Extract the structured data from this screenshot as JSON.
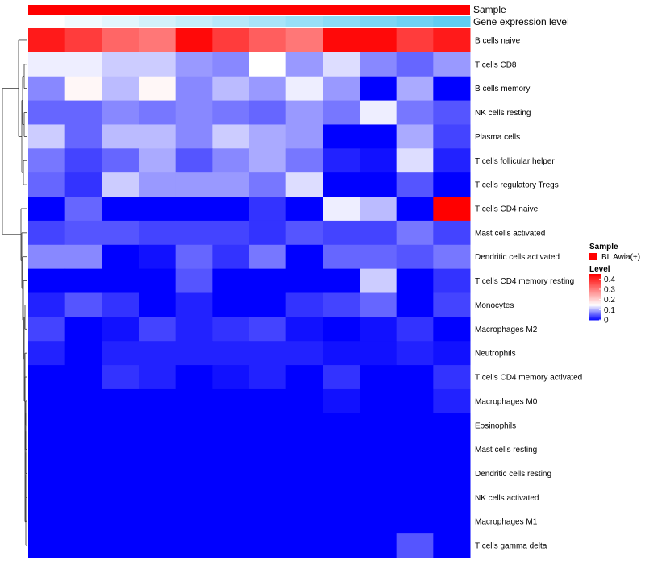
{
  "chart_data": {
    "type": "heatmap",
    "annotation_tracks": [
      {
        "name": "Sample",
        "color": "#ff0000"
      },
      {
        "name": "Gene expression level",
        "gradient": [
          "#ffffff",
          "#5fcdf2"
        ]
      }
    ],
    "rows": [
      "B cells naive",
      "T cells CD8",
      "B cells memory",
      "NK cells resting",
      "Plasma cells",
      "T cells follicular helper",
      "T cells regulatory  Tregs",
      "T cells CD4 naive",
      "Mast cells activated",
      "Dendritic cells activated",
      "T cells CD4 memory resting",
      "Monocytes",
      "Macrophages M2",
      "Neutrophils",
      "T cells CD4 memory activated",
      "Macrophages M0",
      "Eosinophils",
      "Mast cells resting",
      "Dendritic cells resting",
      "NK cells activated",
      "Macrophages M1",
      "T cells gamma delta"
    ],
    "n_columns": 12,
    "values": [
      [
        0.42,
        0.38,
        0.33,
        0.31,
        0.44,
        0.38,
        0.34,
        0.31,
        0.44,
        0.44,
        0.38,
        0.42
      ],
      [
        0.14,
        0.14,
        0.12,
        0.12,
        0.09,
        0.08,
        0.15,
        0.09,
        0.13,
        0.08,
        0.06,
        0.09
      ],
      [
        0.08,
        0.16,
        0.11,
        0.16,
        0.08,
        0.11,
        0.09,
        0.14,
        0.09,
        0.0,
        0.1,
        0.0
      ],
      [
        0.06,
        0.06,
        0.08,
        0.07,
        0.08,
        0.07,
        0.06,
        0.09,
        0.07,
        0.14,
        0.07,
        0.05
      ],
      [
        0.12,
        0.06,
        0.11,
        0.11,
        0.08,
        0.12,
        0.1,
        0.09,
        0.0,
        0.0,
        0.1,
        0.04
      ],
      [
        0.07,
        0.04,
        0.06,
        0.1,
        0.05,
        0.08,
        0.1,
        0.07,
        0.02,
        0.01,
        0.13,
        0.02
      ],
      [
        0.06,
        0.03,
        0.12,
        0.09,
        0.09,
        0.09,
        0.07,
        0.13,
        0.0,
        0.0,
        0.05,
        0.0
      ],
      [
        0.0,
        0.06,
        0.0,
        0.0,
        0.0,
        0.0,
        0.03,
        0.0,
        0.14,
        0.11,
        0.0,
        0.45
      ],
      [
        0.04,
        0.05,
        0.05,
        0.04,
        0.04,
        0.04,
        0.03,
        0.05,
        0.04,
        0.04,
        0.07,
        0.04
      ],
      [
        0.08,
        0.08,
        0.0,
        0.01,
        0.06,
        0.03,
        0.07,
        0.0,
        0.06,
        0.06,
        0.05,
        0.07
      ],
      [
        0.0,
        0.0,
        0.0,
        0.0,
        0.05,
        0.0,
        0.0,
        0.0,
        0.0,
        0.12,
        0.0,
        0.03
      ],
      [
        0.02,
        0.05,
        0.03,
        0.0,
        0.02,
        0.0,
        0.0,
        0.03,
        0.04,
        0.06,
        0.0,
        0.04
      ],
      [
        0.04,
        0.0,
        0.01,
        0.04,
        0.02,
        0.03,
        0.04,
        0.01,
        0.0,
        0.01,
        0.03,
        0.0
      ],
      [
        0.02,
        0.0,
        0.02,
        0.02,
        0.02,
        0.02,
        0.02,
        0.02,
        0.01,
        0.01,
        0.02,
        0.01
      ],
      [
        0.0,
        0.0,
        0.03,
        0.02,
        0.0,
        0.01,
        0.02,
        0.0,
        0.03,
        0.0,
        0.0,
        0.03
      ],
      [
        0.0,
        0.0,
        0.0,
        0.0,
        0.0,
        0.0,
        0.0,
        0.0,
        0.01,
        0.0,
        0.0,
        0.02
      ],
      [
        0.0,
        0.0,
        0.0,
        0.0,
        0.0,
        0.0,
        0.0,
        0.0,
        0.0,
        0.0,
        0.0,
        0.0
      ],
      [
        0.0,
        0.0,
        0.0,
        0.0,
        0.0,
        0.0,
        0.0,
        0.0,
        0.0,
        0.0,
        0.0,
        0.0
      ],
      [
        0.0,
        0.0,
        0.0,
        0.0,
        0.0,
        0.0,
        0.0,
        0.0,
        0.0,
        0.0,
        0.0,
        0.0
      ],
      [
        0.0,
        0.0,
        0.0,
        0.0,
        0.0,
        0.0,
        0.0,
        0.0,
        0.0,
        0.0,
        0.0,
        0.0
      ],
      [
        0.0,
        0.0,
        0.0,
        0.0,
        0.0,
        0.0,
        0.0,
        0.0,
        0.0,
        0.0,
        0.0,
        0.0
      ],
      [
        0.0,
        0.0,
        0.0,
        0.0,
        0.0,
        0.0,
        0.0,
        0.0,
        0.0,
        0.0,
        0.05,
        0.0
      ]
    ],
    "color_scale": {
      "stops": [
        {
          "value": 0,
          "color": "#0000ff"
        },
        {
          "value": 0.15,
          "color": "#ffffff"
        },
        {
          "value": 0.45,
          "color": "#ff0000"
        }
      ]
    },
    "legend": {
      "position": "right",
      "sample_title": "Sample",
      "sample_entry": "BL Awia(+)",
      "sample_color": "#ff0000",
      "level_title": "Level",
      "level_ticks": [
        "0.4",
        "0.3",
        "0.2",
        "0.1",
        "0"
      ],
      "level_tick_values": [
        0.4,
        0.3,
        0.2,
        0.1,
        0
      ]
    },
    "dendrogram": "row clustering tree on left"
  }
}
